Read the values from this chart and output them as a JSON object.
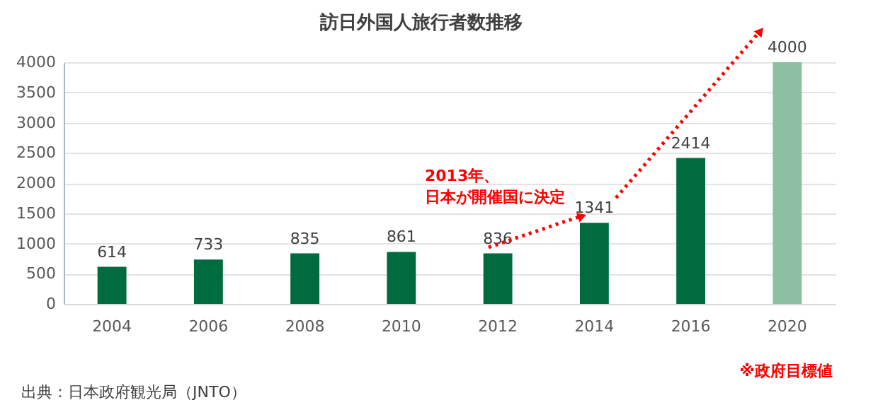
{
  "chart_data": {
    "type": "bar",
    "title": "訪日外国人旅行者数推移",
    "categories": [
      "2004",
      "2006",
      "2008",
      "2010",
      "2012",
      "2014",
      "2016",
      "2020"
    ],
    "values": [
      614,
      733,
      835,
      861,
      836,
      1341,
      2414,
      4000
    ],
    "colors": [
      "#006b3f",
      "#006b3f",
      "#006b3f",
      "#006b3f",
      "#006b3f",
      "#006b3f",
      "#006b3f",
      "#8fbfa3"
    ],
    "ylim": [
      0,
      4000
    ],
    "yticks": [
      0,
      500,
      1000,
      1500,
      2000,
      2500,
      3000,
      3500,
      4000
    ],
    "grid": "y",
    "data_labels": true,
    "annotations": [
      "2013年、",
      "日本が開催国に決定",
      "※政府目標値",
      "出典：日本政府観光局（JNTO）"
    ]
  }
}
